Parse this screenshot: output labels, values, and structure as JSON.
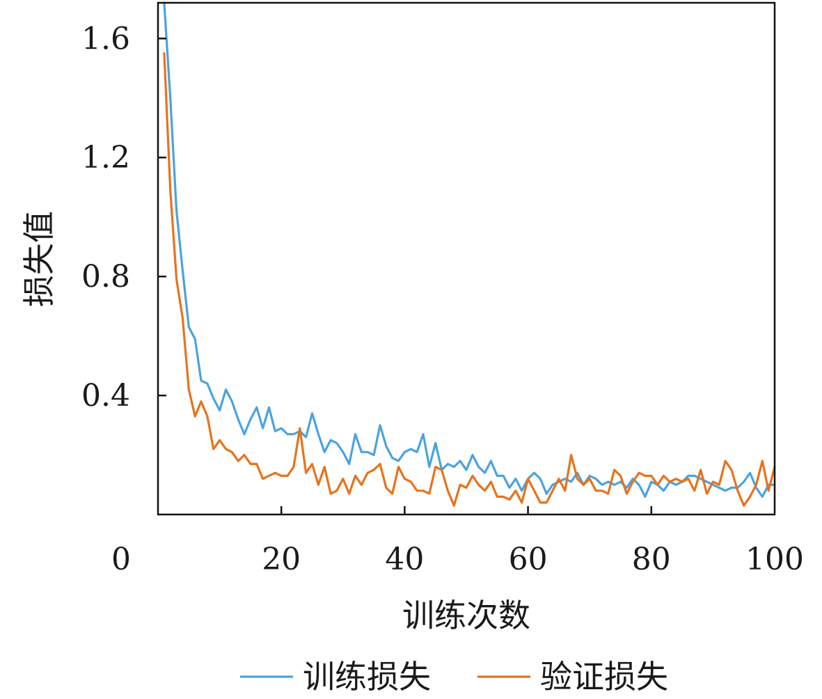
{
  "chart_data": {
    "type": "line",
    "title": "",
    "xlabel": "训练次数",
    "ylabel": "损失值",
    "xlim": [
      0,
      100
    ],
    "ylim": [
      0.0,
      1.72
    ],
    "xticks": [
      0,
      20,
      40,
      60,
      80,
      100
    ],
    "yticks": [
      0.4,
      0.8,
      1.2,
      1.6
    ],
    "x_tick_labels": [
      "0",
      "20",
      "40",
      "60",
      "80",
      "100"
    ],
    "y_tick_labels": [
      "0.4",
      "0.8",
      "1.2",
      "1.6"
    ],
    "grid": false,
    "legend": "bottom",
    "x": [
      1,
      2,
      3,
      4,
      5,
      6,
      7,
      8,
      9,
      10,
      11,
      12,
      13,
      14,
      15,
      16,
      17,
      18,
      19,
      20,
      21,
      22,
      23,
      24,
      25,
      26,
      27,
      28,
      29,
      30,
      31,
      32,
      33,
      34,
      35,
      36,
      37,
      38,
      39,
      40,
      41,
      42,
      43,
      44,
      45,
      46,
      47,
      48,
      49,
      50,
      51,
      52,
      53,
      54,
      55,
      56,
      57,
      58,
      59,
      60,
      61,
      62,
      63,
      64,
      65,
      66,
      67,
      68,
      69,
      70,
      71,
      72,
      73,
      74,
      75,
      76,
      77,
      78,
      79,
      80,
      81,
      82,
      83,
      84,
      85,
      86,
      87,
      88,
      89,
      90,
      91,
      92,
      93,
      94,
      95,
      96,
      97,
      98,
      99,
      100
    ],
    "series": [
      {
        "name": "训练损失",
        "color": "#4aa3df",
        "values": [
          1.72,
          1.4,
          1.02,
          0.82,
          0.63,
          0.59,
          0.45,
          0.44,
          0.39,
          0.35,
          0.42,
          0.38,
          0.32,
          0.27,
          0.32,
          0.36,
          0.29,
          0.36,
          0.28,
          0.29,
          0.27,
          0.27,
          0.28,
          0.26,
          0.34,
          0.27,
          0.21,
          0.25,
          0.24,
          0.21,
          0.17,
          0.27,
          0.21,
          0.21,
          0.2,
          0.3,
          0.23,
          0.19,
          0.18,
          0.21,
          0.22,
          0.21,
          0.27,
          0.16,
          0.24,
          0.15,
          0.17,
          0.16,
          0.18,
          0.15,
          0.2,
          0.16,
          0.14,
          0.18,
          0.13,
          0.13,
          0.09,
          0.12,
          0.08,
          0.12,
          0.14,
          0.12,
          0.07,
          0.1,
          0.11,
          0.12,
          0.11,
          0.14,
          0.1,
          0.13,
          0.12,
          0.1,
          0.11,
          0.1,
          0.11,
          0.09,
          0.12,
          0.1,
          0.06,
          0.11,
          0.1,
          0.08,
          0.11,
          0.1,
          0.11,
          0.13,
          0.13,
          0.12,
          0.11,
          0.1,
          0.09,
          0.08,
          0.09,
          0.09,
          0.11,
          0.14,
          0.09,
          0.06,
          0.1,
          0.1
        ]
      },
      {
        "name": "验证损失",
        "color": "#e8721c",
        "values": [
          1.55,
          1.09,
          0.79,
          0.66,
          0.42,
          0.33,
          0.38,
          0.33,
          0.22,
          0.25,
          0.22,
          0.21,
          0.18,
          0.2,
          0.17,
          0.17,
          0.12,
          0.13,
          0.14,
          0.13,
          0.13,
          0.16,
          0.29,
          0.14,
          0.17,
          0.1,
          0.16,
          0.07,
          0.08,
          0.12,
          0.07,
          0.13,
          0.1,
          0.14,
          0.15,
          0.17,
          0.09,
          0.07,
          0.16,
          0.12,
          0.11,
          0.08,
          0.08,
          0.07,
          0.16,
          0.15,
          0.08,
          0.03,
          0.1,
          0.09,
          0.13,
          0.1,
          0.08,
          0.11,
          0.06,
          0.06,
          0.05,
          0.08,
          0.04,
          0.12,
          0.08,
          0.04,
          0.04,
          0.08,
          0.12,
          0.08,
          0.2,
          0.12,
          0.1,
          0.12,
          0.08,
          0.08,
          0.07,
          0.15,
          0.13,
          0.07,
          0.11,
          0.14,
          0.13,
          0.13,
          0.1,
          0.13,
          0.11,
          0.12,
          0.11,
          0.12,
          0.08,
          0.15,
          0.07,
          0.11,
          0.1,
          0.18,
          0.15,
          0.08,
          0.03,
          0.06,
          0.1,
          0.18,
          0.08,
          0.16
        ]
      }
    ]
  }
}
